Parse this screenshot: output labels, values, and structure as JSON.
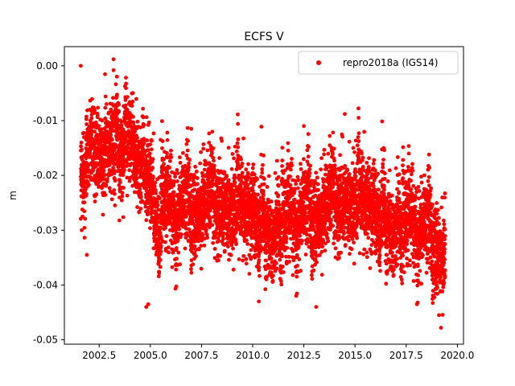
{
  "chart_data": {
    "type": "scatter",
    "title": "ECFS V",
    "xlabel": "",
    "ylabel": "m",
    "xlim": [
      2000.8,
      2020.3
    ],
    "ylim": [
      -0.0508,
      0.0035
    ],
    "x_ticks": [
      2002.5,
      2005.0,
      2007.5,
      2010.0,
      2012.5,
      2015.0,
      2017.5,
      2020.0
    ],
    "x_tick_labels": [
      "2002.5",
      "2005.0",
      "2007.5",
      "2010.0",
      "2012.5",
      "2015.0",
      "2017.5",
      "2020.0"
    ],
    "y_ticks": [
      0.0,
      -0.01,
      -0.02,
      -0.03,
      -0.04,
      -0.05
    ],
    "y_tick_labels": [
      "0.00",
      "-0.01",
      "-0.02",
      "-0.03",
      "-0.04",
      "-0.05"
    ],
    "grid": false,
    "legend": {
      "position": "top-right",
      "entries": [
        "repro2018a (IGS14)"
      ]
    },
    "series": [
      {
        "name": "repro2018a (IGS14)",
        "color": "#ff0000",
        "marker": "circle",
        "x_start": 2001.6,
        "x_end": 2019.4,
        "trend_knots": [
          [
            2001.6,
            -0.021
          ],
          [
            2002.3,
            -0.018
          ],
          [
            2003.0,
            -0.014
          ],
          [
            2003.8,
            -0.013
          ],
          [
            2004.4,
            -0.016
          ],
          [
            2004.8,
            -0.023
          ],
          [
            2005.3,
            -0.027
          ],
          [
            2006.5,
            -0.026
          ],
          [
            2007.5,
            -0.025
          ],
          [
            2008.5,
            -0.025
          ],
          [
            2009.5,
            -0.026
          ],
          [
            2010.2,
            -0.028
          ],
          [
            2011.0,
            -0.029
          ],
          [
            2011.8,
            -0.028
          ],
          [
            2012.5,
            -0.027
          ],
          [
            2013.5,
            -0.026
          ],
          [
            2014.5,
            -0.024
          ],
          [
            2015.5,
            -0.025
          ],
          [
            2016.0,
            -0.027
          ],
          [
            2017.0,
            -0.028
          ],
          [
            2018.0,
            -0.029
          ],
          [
            2018.8,
            -0.031
          ],
          [
            2019.4,
            -0.034
          ]
        ],
        "spread": 0.0038,
        "outliers": [
          [
            2001.6,
            0.0
          ],
          [
            2003.2,
            0.0012
          ],
          [
            2003.2,
            -0.0008
          ],
          [
            2014.5,
            -0.0088
          ],
          [
            2004.8,
            -0.044
          ],
          [
            2004.9,
            -0.0435
          ],
          [
            2013.1,
            -0.044
          ],
          [
            2019.2,
            -0.0478
          ],
          [
            2019.1,
            -0.0455
          ],
          [
            2010.3,
            -0.043
          ],
          [
            2001.9,
            -0.0345
          ],
          [
            2005.5,
            -0.0135
          ],
          [
            2007.0,
            -0.0115
          ],
          [
            2012.5,
            -0.011
          ],
          [
            2016.4,
            -0.015
          ]
        ]
      }
    ]
  }
}
